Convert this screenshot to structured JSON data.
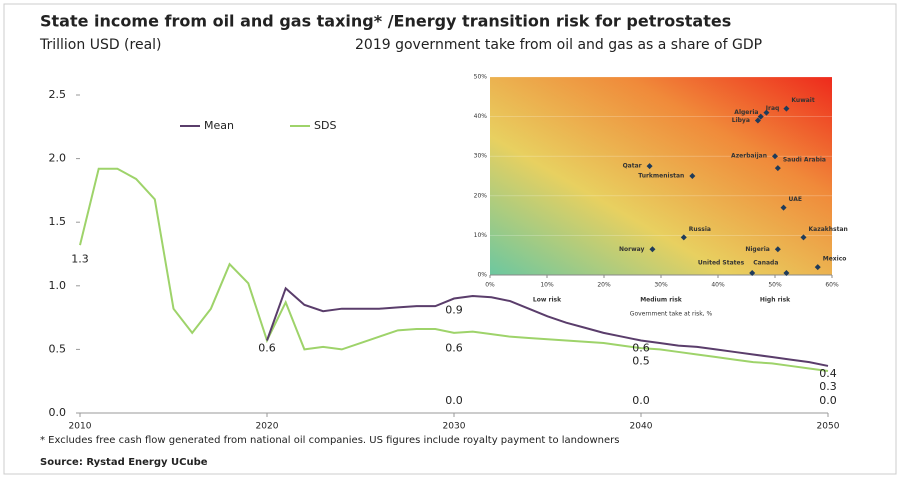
{
  "chart_data": [
    {
      "type": "line",
      "title": "State income from oil and gas taxing* /Energy transition risk for petrostates",
      "subtitle": "Trillion USD (real)",
      "x": [
        2010,
        2011,
        2012,
        2013,
        2014,
        2015,
        2016,
        2017,
        2018,
        2019,
        2020,
        2021,
        2022,
        2023,
        2024,
        2025,
        2026,
        2027,
        2028,
        2029,
        2030,
        2031,
        2032,
        2033,
        2034,
        2035,
        2036,
        2037,
        2038,
        2039,
        2040,
        2041,
        2042,
        2043,
        2044,
        2045,
        2046,
        2047,
        2048,
        2049,
        2050
      ],
      "series": [
        {
          "name": "Mean",
          "color": "#5a3d6b",
          "values": [
            null,
            null,
            null,
            null,
            null,
            null,
            null,
            null,
            null,
            null,
            0.57,
            0.98,
            0.85,
            0.8,
            0.82,
            0.82,
            0.82,
            0.83,
            0.84,
            0.84,
            0.9,
            0.92,
            0.91,
            0.88,
            0.82,
            0.76,
            0.71,
            0.67,
            0.63,
            0.6,
            0.57,
            0.55,
            0.53,
            0.52,
            0.5,
            0.48,
            0.46,
            0.44,
            0.42,
            0.4,
            0.37
          ]
        },
        {
          "name": "SDS",
          "color": "#9ed36a",
          "values": [
            1.32,
            1.92,
            1.92,
            1.84,
            1.68,
            0.82,
            0.63,
            0.82,
            1.17,
            1.02,
            0.57,
            0.87,
            0.5,
            0.52,
            0.5,
            0.55,
            0.6,
            0.65,
            0.66,
            0.66,
            0.63,
            0.64,
            0.62,
            0.6,
            0.59,
            0.58,
            0.57,
            0.56,
            0.55,
            0.53,
            0.51,
            0.5,
            0.48,
            0.46,
            0.44,
            0.42,
            0.4,
            0.39,
            0.37,
            0.35,
            0.33
          ]
        }
      ],
      "xlim": [
        2010,
        2050
      ],
      "xticks": [
        2010,
        2020,
        2030,
        2040,
        2050
      ],
      "ylim": [
        0,
        2.5
      ],
      "yticks": [
        {
          "value": 0,
          "label": "0.0"
        },
        0.5,
        {
          "value": 1,
          "label": "1.0"
        },
        1.5,
        {
          "value": 2,
          "label": "2.0"
        },
        2.5
      ],
      "annotations": [
        {
          "x": 2010,
          "y": 1.3,
          "text": "1.3"
        },
        {
          "x": 2020,
          "y": 0.6,
          "text": "0.6"
        },
        {
          "x": 2030,
          "y": 0.9,
          "text": "0.9"
        },
        {
          "x": 2030,
          "y": 0.6,
          "text": "0.6"
        },
        {
          "x": 2030,
          "y": 0,
          "text": "0.0"
        },
        {
          "x": 2040,
          "y": 0.6,
          "text": "0.6"
        },
        {
          "x": 2040,
          "y": 0.5,
          "text": "0.5"
        },
        {
          "x": 2040,
          "y": 0,
          "text": "0.0"
        },
        {
          "x": 2050,
          "y": 0.4,
          "text": "0.4"
        },
        {
          "x": 2050,
          "y": 0.3,
          "text": "0.3"
        },
        {
          "x": 2050,
          "y": 0,
          "text": "0.0"
        }
      ],
      "legend": "top-left"
    },
    {
      "type": "scatter",
      "title": "2019 government take from oil and gas as a share of GDP",
      "xlabel": "Government take at risk, %",
      "labels": [
        "Algeria",
        "Kuwait",
        "Libya",
        "Iraq",
        "Azerbaijan",
        "Saudi Arabia",
        "Qatar",
        "Turkmenistan",
        "UAE",
        "Kazakhstan",
        "Nigeria",
        "Norway",
        "Russia",
        "United States",
        "Canada",
        "Mexico"
      ],
      "x": [
        48.5,
        52,
        47,
        47.5,
        50,
        50.5,
        28,
        35.5,
        51.5,
        55,
        50.5,
        28.5,
        34,
        46,
        52,
        57.5
      ],
      "values": [
        41,
        42,
        39,
        40,
        30,
        27,
        27.5,
        25,
        17,
        9.5,
        6.5,
        6.5,
        9.5,
        0.5,
        0.5,
        2
      ],
      "color": "#1f3b5a",
      "risk_bands": [
        {
          "x": 10,
          "text": "Low risk"
        },
        {
          "x": 30,
          "text": "Medium risk"
        },
        {
          "x": 50,
          "text": "High risk"
        }
      ],
      "xlim": [
        0,
        60
      ],
      "xticks": [
        {
          "value": 0,
          "label": "0%"
        },
        {
          "value": 10,
          "label": "10%"
        },
        {
          "value": 20,
          "label": "20%"
        },
        {
          "value": 30,
          "label": "30%"
        },
        {
          "value": 40,
          "label": "40%"
        },
        {
          "value": 50,
          "label": "50%"
        },
        {
          "value": 60,
          "label": "60%"
        }
      ],
      "ylim": [
        0,
        50
      ],
      "yticks": [
        {
          "value": 0,
          "label": "0%"
        },
        {
          "value": 10,
          "label": "10%"
        },
        {
          "value": 20,
          "label": "20%"
        },
        {
          "value": 30,
          "label": "30%"
        },
        {
          "value": 40,
          "label": "40%"
        },
        {
          "value": 50,
          "label": "50%"
        }
      ],
      "grid": true
    }
  ],
  "footnote": "* Excludes free cash flow generated from national oil companies. US figures include royalty payment to landowners",
  "source": "Source: Rystad Energy UCube"
}
